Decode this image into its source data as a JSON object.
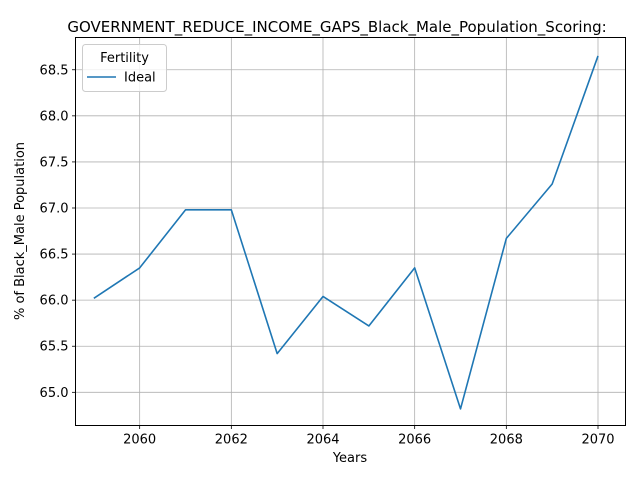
{
  "chart_data": {
    "type": "line",
    "title": "GOVERNMENT_REDUCE_INCOME_GAPS_Black_Male_Population_Scoring:",
    "xlabel": "Years",
    "ylabel": "% of Black_Male Population",
    "xlim": [
      2058.6,
      2070.6
    ],
    "ylim": [
      64.64,
      68.85
    ],
    "xticks": [
      2060,
      2062,
      2064,
      2066,
      2068,
      2070
    ],
    "yticks": [
      65.0,
      65.5,
      66.0,
      66.5,
      67.0,
      67.5,
      68.0,
      68.5
    ],
    "ytick_labels": [
      "65.0",
      "65.5",
      "66.0",
      "66.5",
      "67.0",
      "67.5",
      "68.0",
      "68.5"
    ],
    "grid": true,
    "legend": {
      "title": "Fertility",
      "position": "top-left"
    },
    "series": [
      {
        "name": "Ideal",
        "color": "#1f77b4",
        "x": [
          2059,
          2060,
          2061,
          2062,
          2063,
          2064,
          2065,
          2066,
          2067,
          2068,
          2069,
          2070
        ],
        "values": [
          66.02,
          66.35,
          66.98,
          66.98,
          65.42,
          66.04,
          65.72,
          66.35,
          64.82,
          66.67,
          67.26,
          68.65
        ]
      }
    ]
  }
}
